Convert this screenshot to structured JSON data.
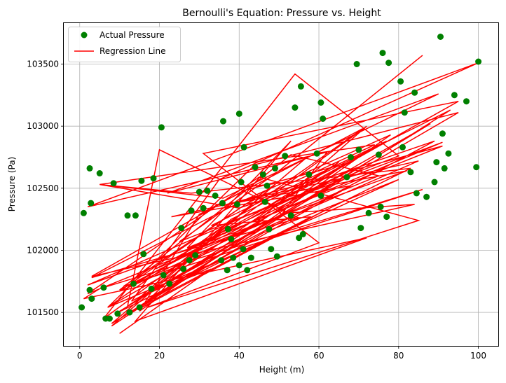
{
  "chart_data": {
    "type": "scatter",
    "title": "Bernoulli's Equation: Pressure vs. Height",
    "xlabel": "Height (m)",
    "ylabel": "Pressure (Pa)",
    "xlim": [
      -4,
      105
    ],
    "ylim": [
      101230,
      103830
    ],
    "xticks": [
      0,
      20,
      40,
      60,
      80,
      100
    ],
    "yticks": [
      101500,
      102000,
      102500,
      103000,
      103500
    ],
    "xtick_labels": [
      "0",
      "20",
      "40",
      "60",
      "80",
      "100"
    ],
    "ytick_labels": [
      "101500",
      "102000",
      "102500",
      "103000",
      "103500"
    ],
    "grid": true,
    "legend_position": "top-left",
    "colors": {
      "scatter": "#008000",
      "line": "#ff0000",
      "grid": "#b0b0b0"
    },
    "series": [
      {
        "name": "Actual Pressure",
        "kind": "scatter",
        "x": [
          0.5,
          1,
          2.5,
          2.5,
          2.8,
          3,
          5,
          6,
          6.5,
          7.5,
          8.5,
          9.5,
          12,
          12.5,
          13.5,
          14,
          15,
          15.5,
          16,
          18,
          18.5,
          20.5,
          21,
          22.5,
          25.5,
          26,
          27.5,
          28,
          29,
          30,
          31,
          32,
          34,
          35.5,
          35.8,
          36,
          37,
          37.2,
          38,
          38.5,
          39.5,
          40,
          40,
          40.5,
          41,
          41.2,
          42,
          43,
          44,
          46,
          46.5,
          47,
          47.5,
          48,
          49,
          49.5,
          51.5,
          53,
          54,
          55,
          55.5,
          56,
          57.5,
          59.5,
          60.5,
          60.5,
          61,
          67,
          68,
          69.5,
          70,
          70.5,
          72.5,
          75,
          75.5,
          76,
          77,
          77.5,
          80.5,
          81,
          81.5,
          83,
          84,
          84.5,
          87,
          89,
          89.5,
          90.5,
          91,
          91.5,
          92.5,
          94,
          97,
          99.5,
          100
        ],
        "y": [
          101540,
          102300,
          102660,
          101680,
          102380,
          101610,
          102620,
          101700,
          101450,
          101450,
          102540,
          101490,
          102280,
          101500,
          101730,
          102280,
          101540,
          102560,
          101970,
          101690,
          102580,
          102990,
          101800,
          101730,
          102180,
          101850,
          101920,
          102320,
          101960,
          102470,
          102340,
          102480,
          102440,
          101920,
          102380,
          103040,
          101840,
          102170,
          102090,
          101940,
          102370,
          103100,
          101880,
          102550,
          102010,
          102830,
          101840,
          101940,
          102670,
          102610,
          102390,
          102520,
          102170,
          102010,
          102660,
          101950,
          102760,
          102280,
          103150,
          102100,
          103320,
          102130,
          102610,
          102780,
          103190,
          102440,
          103060,
          102590,
          102750,
          103500,
          102810,
          102180,
          102300,
          102770,
          102350,
          103590,
          102270,
          103510,
          103360,
          102830,
          103110,
          102630,
          103270,
          102460,
          102430,
          102550,
          102710,
          103720,
          102940,
          102660,
          102780,
          103250,
          103200,
          102670,
          103520
        ]
      },
      {
        "name": "Regression Line",
        "kind": "line",
        "x": [
          10,
          33,
          25,
          8,
          49,
          11,
          86,
          5,
          1,
          72,
          14,
          53,
          27,
          91,
          37,
          82,
          2,
          47,
          65,
          12,
          20,
          55,
          3,
          41,
          78,
          15,
          30,
          71,
          7,
          44,
          95,
          18,
          60,
          9,
          83,
          28,
          5,
          40,
          89,
          13,
          35,
          100,
          2,
          62,
          50,
          17,
          68,
          23,
          85,
          10,
          42,
          74,
          5,
          36,
          90,
          22,
          57,
          8,
          46,
          80,
          15,
          38,
          93,
          12,
          58,
          33,
          77,
          19,
          52,
          84,
          3,
          41,
          67,
          22,
          88,
          7,
          48,
          62,
          15,
          37,
          91,
          27,
          69,
          10,
          53,
          75,
          2,
          45,
          85,
          17,
          60,
          31,
          95,
          12,
          42,
          72,
          6,
          54,
          80,
          25,
          50,
          86
        ],
        "y": [
          101330,
          101850,
          101750,
          101390,
          102530,
          101710,
          102490,
          101690,
          101610,
          102100,
          101430,
          102880,
          102020,
          102840,
          102370,
          102640,
          101720,
          102350,
          102710,
          101550,
          102810,
          102260,
          101780,
          102400,
          102930,
          101510,
          102290,
          102980,
          101540,
          102690,
          103110,
          101670,
          102470,
          101490,
          102660,
          102460,
          102530,
          102340,
          102880,
          101590,
          102570,
          103510,
          102350,
          102790,
          102260,
          101600,
          102520,
          102270,
          102720,
          101670,
          102380,
          102850,
          102530,
          102420,
          103260,
          102460,
          102750,
          101410,
          102140,
          102570,
          101620,
          102250,
          103130,
          101490,
          102270,
          102200,
          102880,
          101850,
          102300,
          102370,
          101790,
          102480,
          102700,
          101730,
          103020,
          101540,
          102090,
          102330,
          101530,
          102220,
          102870,
          102010,
          102660,
          101680,
          102770,
          102600,
          101650,
          102590,
          102240,
          101540,
          102060,
          102780,
          103200,
          101700,
          102160,
          103000,
          101450,
          103420,
          102760,
          102070,
          102640,
          103570
        ]
      }
    ]
  }
}
